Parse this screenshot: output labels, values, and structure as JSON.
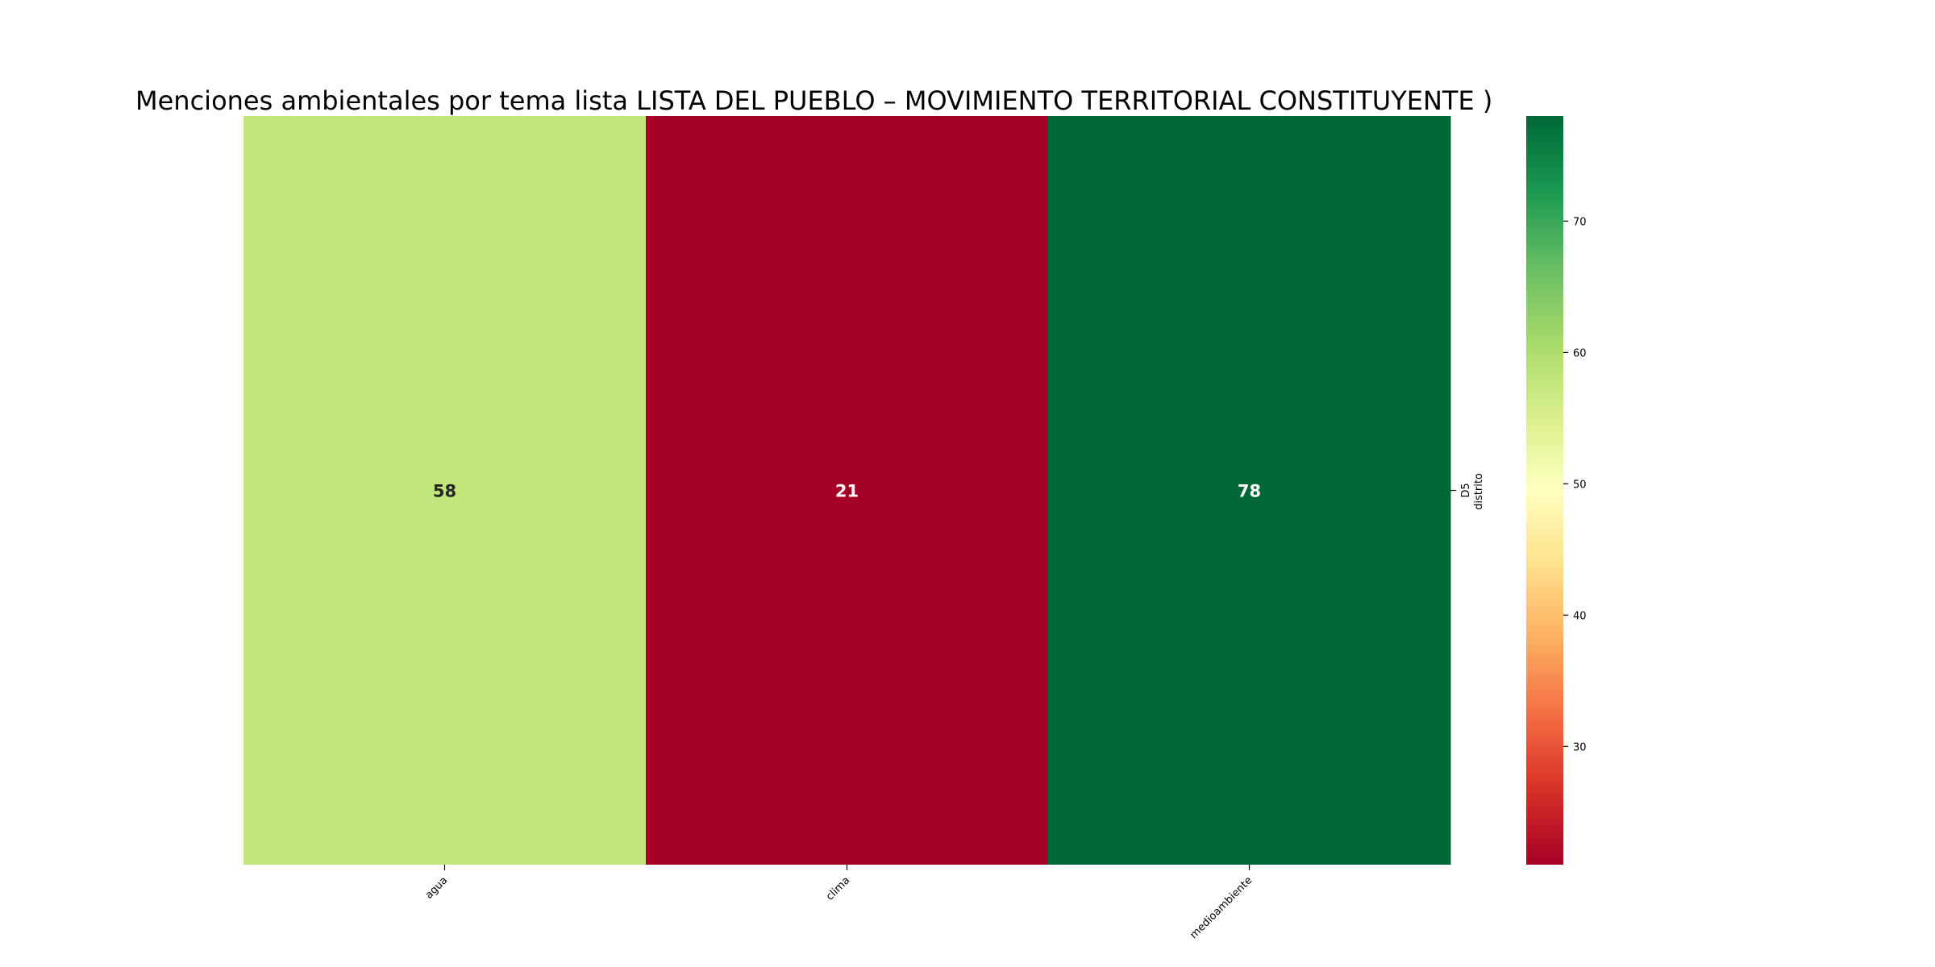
{
  "chart_data": {
    "type": "heatmap",
    "title": "Menciones ambientales por tema lista LISTA DEL PUEBLO – MOVIMIENTO TERRITORIAL CONSTITUYENTE )",
    "x_categories": [
      "agua",
      "clima",
      "medioambiente"
    ],
    "y_categories": [
      "D5"
    ],
    "ylabel": "distrito",
    "values": [
      [
        58,
        21,
        78
      ]
    ],
    "colormap": "RdYlGn",
    "vmin": 21,
    "vmax": 78,
    "colorbar_ticks": [
      30,
      40,
      50,
      60,
      70
    ],
    "annotated": true,
    "colors": {
      "agua": "#c0e67c",
      "clima": "#a50026",
      "medioambiente": "#006837"
    }
  }
}
